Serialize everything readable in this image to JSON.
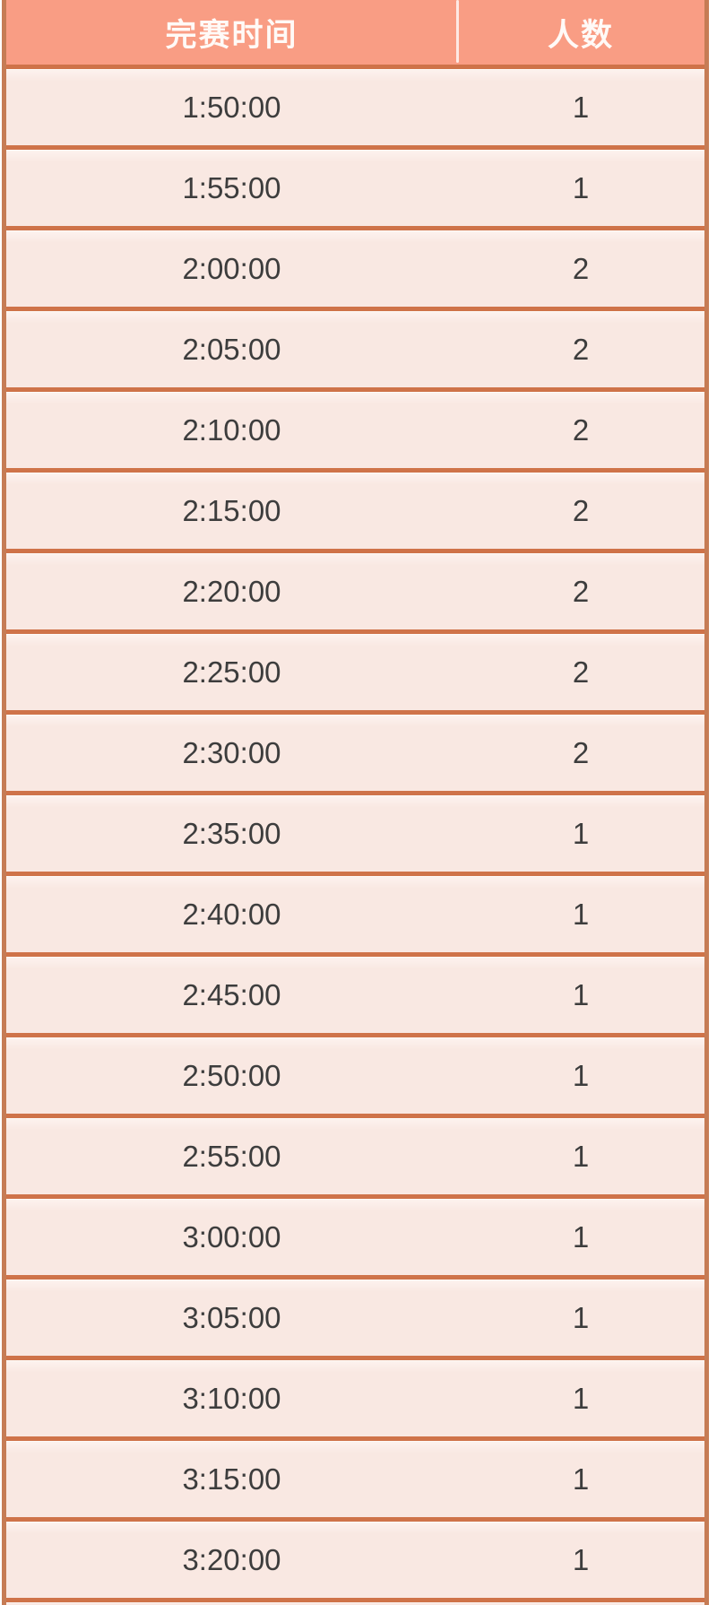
{
  "table": {
    "columns": {
      "finish_time_label": "完赛时间",
      "count_label": "人数"
    },
    "rows": [
      {
        "time": "1:50:00",
        "count": "1"
      },
      {
        "time": "1:55:00",
        "count": "1"
      },
      {
        "time": "2:00:00",
        "count": "2"
      },
      {
        "time": "2:05:00",
        "count": "2"
      },
      {
        "time": "2:10:00",
        "count": "2"
      },
      {
        "time": "2:15:00",
        "count": "2"
      },
      {
        "time": "2:20:00",
        "count": "2"
      },
      {
        "time": "2:25:00",
        "count": "2"
      },
      {
        "time": "2:30:00",
        "count": "2"
      },
      {
        "time": "2:35:00",
        "count": "1"
      },
      {
        "time": "2:40:00",
        "count": "1"
      },
      {
        "time": "2:45:00",
        "count": "1"
      },
      {
        "time": "2:50:00",
        "count": "1"
      },
      {
        "time": "2:55:00",
        "count": "1"
      },
      {
        "time": "3:00:00",
        "count": "1"
      },
      {
        "time": "3:05:00",
        "count": "1"
      },
      {
        "time": "3:10:00",
        "count": "1"
      },
      {
        "time": "3:15:00",
        "count": "1"
      },
      {
        "time": "3:20:00",
        "count": "1"
      }
    ]
  },
  "chart_data": {
    "type": "table",
    "title": "",
    "categories": [
      "1:50:00",
      "1:55:00",
      "2:00:00",
      "2:05:00",
      "2:10:00",
      "2:15:00",
      "2:20:00",
      "2:25:00",
      "2:30:00",
      "2:35:00",
      "2:40:00",
      "2:45:00",
      "2:50:00",
      "2:55:00",
      "3:00:00",
      "3:05:00",
      "3:10:00",
      "3:15:00",
      "3:20:00"
    ],
    "values": [
      1,
      1,
      2,
      2,
      2,
      2,
      2,
      2,
      2,
      1,
      1,
      1,
      1,
      1,
      1,
      1,
      1,
      1,
      1
    ],
    "xlabel": "完赛时间",
    "ylabel": "人数"
  },
  "colors": {
    "header_bg": "#f99d84",
    "header_text": "#fffaf7",
    "border_color": "#c67c55",
    "separator_color": "#cf7349",
    "row_bg": "#f9e8e2",
    "row_text": "#3d3d3d",
    "page_bg": "#ffffff"
  }
}
